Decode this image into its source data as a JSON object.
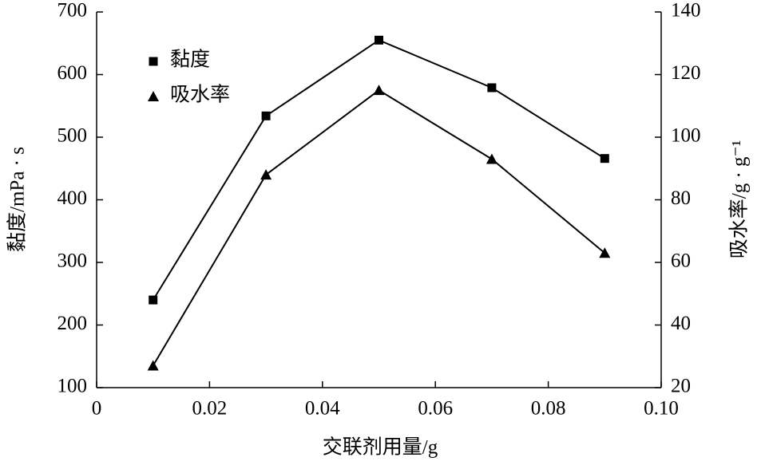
{
  "chart_data": {
    "type": "line",
    "x_label": "交联剂用量/g",
    "y_label": "黏度/mPa · s",
    "y2_label": "吸水率/g · g⁻¹",
    "x": [
      0.01,
      0.03,
      0.05,
      0.07,
      0.09
    ],
    "series": [
      {
        "name": "黏度",
        "color": "#000000",
        "marker": "square",
        "values": [
          240,
          534,
          655,
          579,
          466
        ]
      },
      {
        "name": "吸水率",
        "color": "#000000",
        "marker": "triangle",
        "axis": "y2",
        "values": [
          27,
          88,
          115,
          93,
          63
        ]
      }
    ],
    "xlim": [
      0,
      0.1
    ],
    "xticks": [
      0,
      0.02,
      0.04,
      0.06,
      0.08,
      {
        "value": 0.1,
        "label": "0.10"
      }
    ],
    "ylim": [
      100,
      700
    ],
    "yticks": [
      100,
      200,
      300,
      400,
      500,
      600,
      700
    ],
    "y2lim": [
      20,
      140
    ],
    "y2ticks": [
      20,
      40,
      60,
      80,
      100,
      120,
      140
    ],
    "legend": "upper left",
    "grid": false
  }
}
